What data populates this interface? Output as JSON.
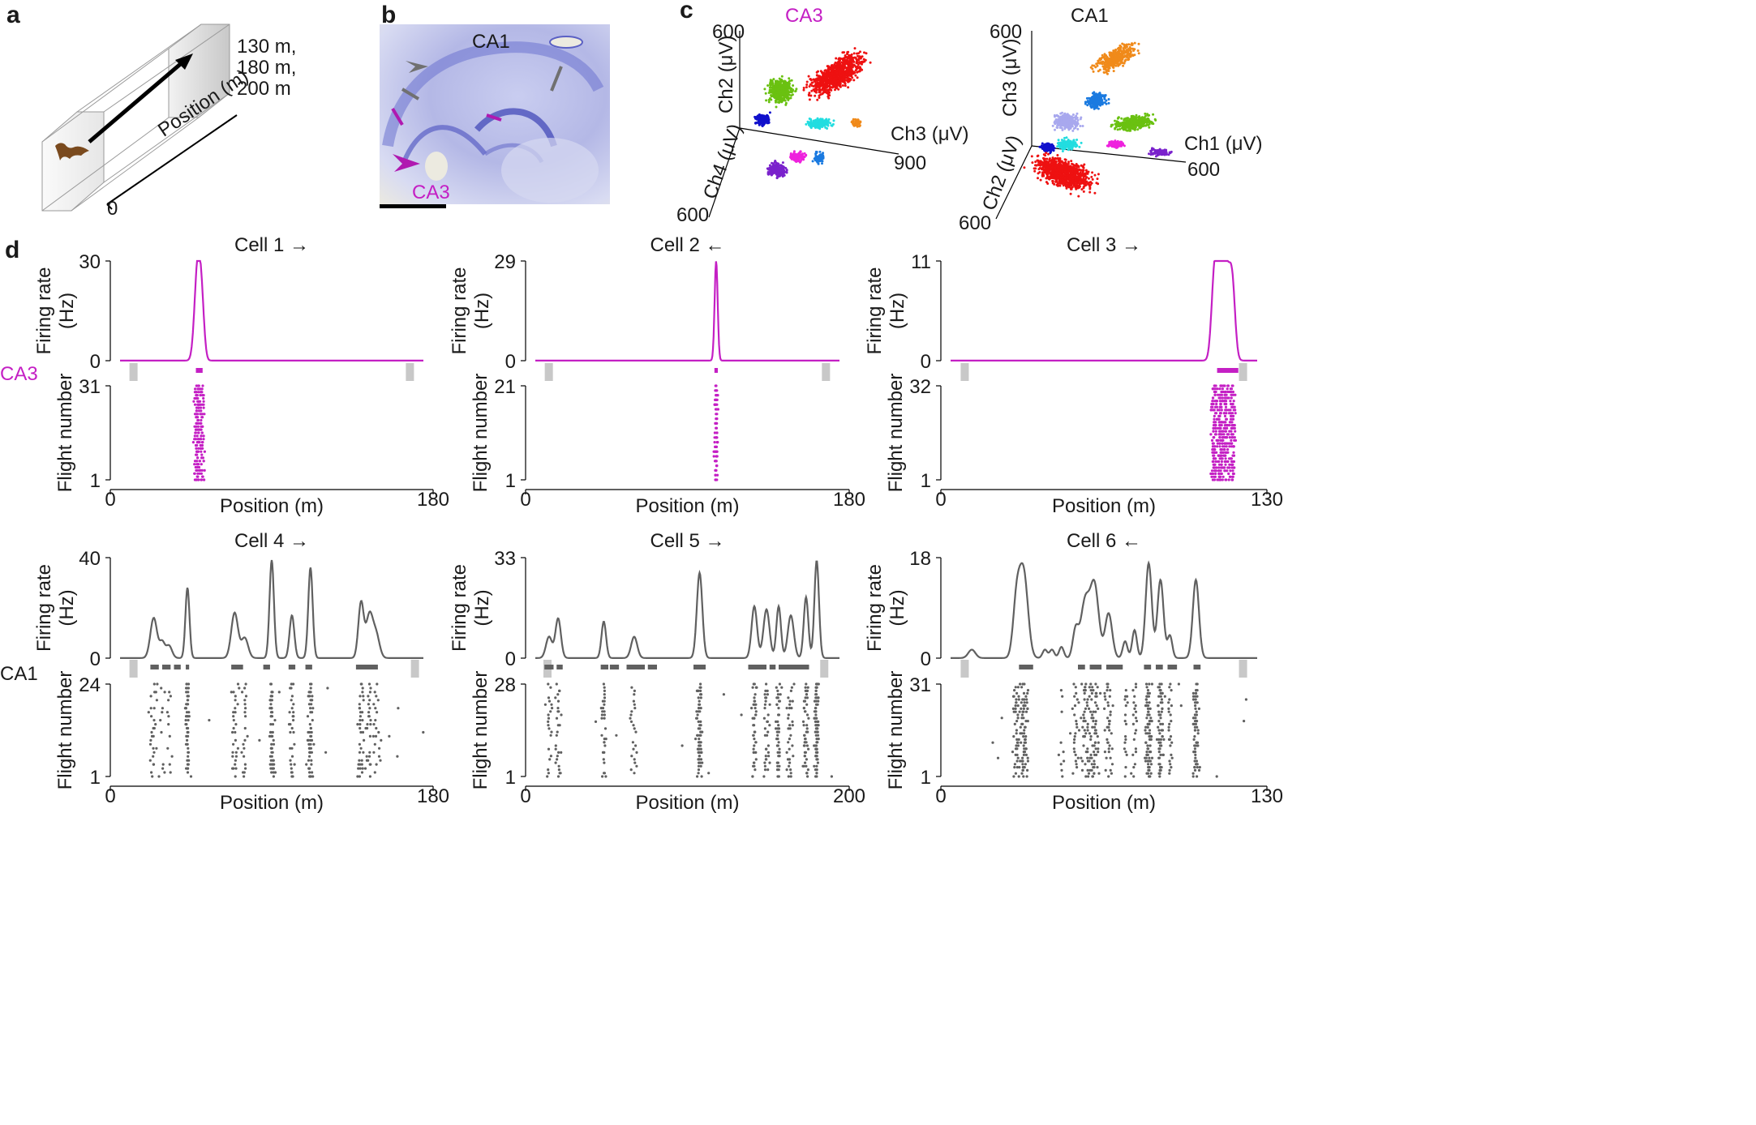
{
  "panels": {
    "a": {
      "letter": "a",
      "lengths": [
        "130 m,",
        "180 m,",
        "200 m"
      ],
      "axis_label": "Position (m)",
      "origin": "0"
    },
    "b": {
      "letter": "b",
      "label_ca1": "CA1",
      "label_ca3": "CA3"
    },
    "c": {
      "letter": "c",
      "left": {
        "title": "CA3",
        "y_label": "Ch2  (μV)",
        "x_label": "Ch3 (μV)",
        "z_label": "Ch4 (μV)",
        "y_tick": "600",
        "x_tick": "900",
        "z_tick": "600"
      },
      "right": {
        "title": "CA1",
        "y_label": "Ch3 (μV)",
        "x_label": "Ch1 (μV)",
        "z_label": "Ch2 (μV)",
        "y_tick": "600",
        "x_tick": "600",
        "z_tick": "600"
      }
    },
    "d": {
      "letter": "d"
    }
  },
  "row_labels": {
    "ca3": "CA3",
    "ca1": "CA1"
  },
  "common": {
    "rate_label_1": "Firing rate",
    "rate_label_2": "(Hz)",
    "flight_label": "Flight number",
    "position_label": "Position (m)",
    "zero": "0"
  },
  "colors": {
    "ca3": "#c41fc4",
    "ca1": "#606060",
    "marker": "#c8c8c8"
  },
  "chart_data": [
    {
      "type": "line",
      "title": "Cell 1 →",
      "region": "CA3",
      "xlim": [
        0,
        180
      ],
      "ymax": 30,
      "flights": 31,
      "x_ticks": [
        "0",
        "180"
      ],
      "y_ticks": [
        "0",
        "30"
      ],
      "flight_ticks": [
        "1",
        "31"
      ],
      "peaks": [
        {
          "x": 46,
          "h": 28,
          "w": 1.8
        },
        {
          "x": 48.5,
          "h": 14,
          "w": 1.5
        }
      ],
      "fields": [
        [
          45,
          49
        ]
      ],
      "endmarks": [
        8,
        172
      ]
    },
    {
      "type": "line",
      "title": "Cell 2 ←",
      "region": "CA3",
      "xlim": [
        0,
        180
      ],
      "ymax": 29,
      "flights": 21,
      "x_ticks": [
        "0",
        "180"
      ],
      "y_ticks": [
        "0",
        "29"
      ],
      "flight_ticks": [
        "1",
        "21"
      ],
      "peaks": [
        {
          "x": 107,
          "h": 29,
          "w": 0.9
        }
      ],
      "fields": [
        [
          106,
          108
        ]
      ],
      "endmarks": [
        8,
        172
      ]
    },
    {
      "type": "line",
      "title": "Cell 3 →",
      "region": "CA3",
      "xlim": [
        0,
        130
      ],
      "ymax": 11,
      "flights": 32,
      "x_ticks": [
        "0",
        "130"
      ],
      "y_ticks": [
        "0",
        "11"
      ],
      "flight_ticks": [
        "1",
        "32"
      ],
      "peaks": [
        {
          "x": 112,
          "h": 10,
          "w": 1.3
        },
        {
          "x": 114.5,
          "h": 9,
          "w": 1.3
        },
        {
          "x": 117,
          "h": 9,
          "w": 1.5
        },
        {
          "x": 119.5,
          "h": 7.5,
          "w": 1.2
        }
      ],
      "fields": [
        [
          113,
          122
        ]
      ],
      "endmarks": [
        6,
        124
      ]
    },
    {
      "type": "line",
      "title": "Cell 4 →",
      "region": "CA1",
      "xlim": [
        0,
        180
      ],
      "ymax": 40,
      "flights": 24,
      "x_ticks": [
        "0",
        "180"
      ],
      "y_ticks": [
        "0",
        "40"
      ],
      "flight_ticks": [
        "1",
        "24"
      ],
      "peaks": [
        {
          "x": 20,
          "h": 16,
          "w": 2
        },
        {
          "x": 25,
          "h": 6,
          "w": 1.5
        },
        {
          "x": 29,
          "h": 5,
          "w": 1.8
        },
        {
          "x": 40,
          "h": 28,
          "w": 1.2
        },
        {
          "x": 68,
          "h": 18,
          "w": 2
        },
        {
          "x": 74,
          "h": 8,
          "w": 2
        },
        {
          "x": 90,
          "h": 39,
          "w": 1.3
        },
        {
          "x": 102,
          "h": 17,
          "w": 1.4
        },
        {
          "x": 113,
          "h": 36,
          "w": 1.3
        },
        {
          "x": 143,
          "h": 22,
          "w": 1.6
        },
        {
          "x": 148,
          "h": 17,
          "w": 2
        },
        {
          "x": 152,
          "h": 9,
          "w": 2
        }
      ],
      "fields": [
        [
          18,
          23
        ],
        [
          25,
          30
        ],
        [
          32,
          36
        ],
        [
          39,
          41
        ],
        [
          66,
          73
        ],
        [
          85,
          89
        ],
        [
          100,
          104
        ],
        [
          110,
          114
        ],
        [
          140,
          153
        ]
      ],
      "endmarks": [
        8,
        175
      ]
    },
    {
      "type": "line",
      "title": "Cell 5 →",
      "region": "CA1",
      "xlim": [
        0,
        200
      ],
      "ymax": 33,
      "flights": 28,
      "x_ticks": [
        "0",
        "200"
      ],
      "y_ticks": [
        "0",
        "33"
      ],
      "flight_ticks": [
        "1",
        "28"
      ],
      "peaks": [
        {
          "x": 9,
          "h": 7,
          "w": 2
        },
        {
          "x": 15,
          "h": 13,
          "w": 1.8
        },
        {
          "x": 45,
          "h": 12,
          "w": 1.5
        },
        {
          "x": 65,
          "h": 7,
          "w": 2
        },
        {
          "x": 108,
          "h": 28,
          "w": 1.8
        },
        {
          "x": 144,
          "h": 17,
          "w": 1.8
        },
        {
          "x": 152,
          "h": 16,
          "w": 2
        },
        {
          "x": 160,
          "h": 17,
          "w": 1.5
        },
        {
          "x": 168,
          "h": 14,
          "w": 2
        },
        {
          "x": 178,
          "h": 20,
          "w": 1.5
        },
        {
          "x": 185,
          "h": 32,
          "w": 1.5
        }
      ],
      "fields": [
        [
          6,
          12
        ],
        [
          14,
          18
        ],
        [
          43,
          48
        ],
        [
          49,
          55
        ],
        [
          60,
          72
        ],
        [
          74,
          80
        ],
        [
          104,
          112
        ],
        [
          140,
          152
        ],
        [
          154,
          158
        ],
        [
          160,
          169
        ],
        [
          168,
          180
        ]
      ],
      "endmarks": [
        8,
        190
      ]
    },
    {
      "type": "line",
      "title": "Cell 6 ←",
      "region": "CA1",
      "xlim": [
        0,
        130
      ],
      "ymax": 18,
      "flights": 31,
      "x_ticks": [
        "0",
        "130"
      ],
      "y_ticks": [
        "0",
        "18"
      ],
      "flight_ticks": [
        "1",
        "31"
      ],
      "peaks": [
        {
          "x": 9,
          "h": 1.5,
          "w": 1.5
        },
        {
          "x": 28,
          "h": 10,
          "w": 1.5
        },
        {
          "x": 31,
          "h": 15,
          "w": 1.8
        },
        {
          "x": 40,
          "h": 1.5,
          "w": 1
        },
        {
          "x": 43,
          "h": 1.5,
          "w": 1
        },
        {
          "x": 47,
          "h": 2,
          "w": 1
        },
        {
          "x": 53,
          "h": 5,
          "w": 1.2
        },
        {
          "x": 57,
          "h": 10,
          "w": 1.8
        },
        {
          "x": 61,
          "h": 13,
          "w": 1.8
        },
        {
          "x": 67,
          "h": 8,
          "w": 1.5
        },
        {
          "x": 74,
          "h": 3,
          "w": 1
        },
        {
          "x": 78,
          "h": 5,
          "w": 1
        },
        {
          "x": 84,
          "h": 17,
          "w": 1.3
        },
        {
          "x": 89,
          "h": 14,
          "w": 1.3
        },
        {
          "x": 93,
          "h": 4,
          "w": 1
        },
        {
          "x": 104,
          "h": 14,
          "w": 1.3
        }
      ],
      "fields": [
        [
          29,
          35
        ],
        [
          54,
          57
        ],
        [
          59,
          64
        ],
        [
          66,
          73
        ],
        [
          82,
          85
        ],
        [
          87,
          90
        ],
        [
          92,
          96
        ],
        [
          103,
          106
        ]
      ],
      "endmarks": [
        6,
        124
      ]
    }
  ]
}
